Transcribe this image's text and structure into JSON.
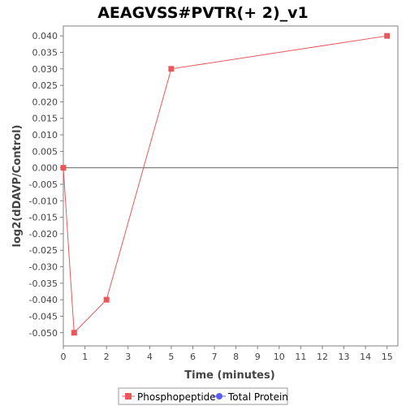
{
  "chart_data": {
    "type": "line",
    "title": "AEAGVSS#PVTR(+ 2)_v1",
    "xlabel": "Time (minutes)",
    "ylabel": "log2(dDAVP/Control)",
    "xlim": [
      0,
      15.5
    ],
    "ylim": [
      -0.054,
      0.043
    ],
    "x_ticks": [
      0,
      1,
      2,
      3,
      4,
      5,
      6,
      7,
      8,
      9,
      10,
      11,
      12,
      13,
      14,
      15
    ],
    "y_ticks": [
      0.04,
      0.035,
      0.03,
      0.025,
      0.02,
      0.015,
      0.01,
      0.005,
      0.0,
      -0.005,
      -0.01,
      -0.015,
      -0.02,
      -0.025,
      -0.03,
      -0.035,
      -0.04,
      -0.045,
      -0.05
    ],
    "y_tick_labels": [
      "0.040",
      "0.035",
      "0.030",
      "0.025",
      "0.020",
      "0.015",
      "0.010",
      "0.005",
      "0.000",
      "-0.005",
      "-0.010",
      "-0.015",
      "-0.020",
      "-0.025",
      "-0.030",
      "-0.035",
      "-0.040",
      "-0.045",
      "-0.050"
    ],
    "zero_line": true,
    "grid": false,
    "legend_position": "bottom-center",
    "series": [
      {
        "name": "Phosphopeptide",
        "color": "#e8585b",
        "marker": "square",
        "x": [
          0,
          0.5,
          2,
          5,
          15
        ],
        "y": [
          0.0,
          -0.05,
          -0.04,
          0.03,
          0.04
        ]
      },
      {
        "name": "Total Protein",
        "color": "#5b5bf5",
        "marker": "circle",
        "x": [],
        "y": []
      }
    ]
  }
}
